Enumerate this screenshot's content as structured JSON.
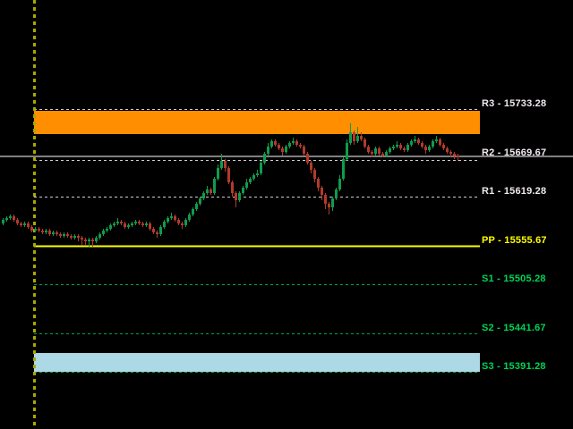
{
  "window": {
    "background": "#000000"
  },
  "chart_data": {
    "type": "candlestick",
    "title": "",
    "grid": false,
    "legend": false,
    "levels": [
      {
        "id": "R3",
        "label": "R3 - 15733.28",
        "value": 15733.28,
        "line_style": "dash",
        "line_color": "#d4cad4",
        "label_color": "#efe9ef"
      },
      {
        "id": "R2",
        "label": "R2 - 15669.67",
        "value": 15669.67,
        "line_style": "dash",
        "line_color": "#d4cad4",
        "label_color": "#efe9ef"
      },
      {
        "id": "R1",
        "label": "R1 - 15619.28",
        "value": 15619.28,
        "line_style": "dash",
        "line_color": "#d4cad4",
        "label_color": "#efe9ef"
      },
      {
        "id": "PP",
        "label": "PP - 15555.67",
        "value": 15555.67,
        "line_style": "solid",
        "line_color": "#ffff00",
        "label_color": "#ffff00"
      },
      {
        "id": "S1",
        "label": "S1 - 15505.28",
        "value": 15505.28,
        "line_style": "dash",
        "line_color": "#00a44c",
        "label_color": "#00d455"
      },
      {
        "id": "S2",
        "label": "S2 - 15441.67",
        "value": 15441.67,
        "line_style": "dash",
        "line_color": "#00a44c",
        "label_color": "#00d455"
      },
      {
        "id": "S3",
        "label": "S3 - 15391.28",
        "value": 15391.28,
        "line_style": "dash",
        "line_color": "#00a44c",
        "label_color": "#00d455"
      }
    ],
    "price_line": {
      "value": 15671.6,
      "color": "#808080"
    },
    "zones": [
      {
        "id": "resistance-zone",
        "color": "#ff8f00",
        "top_value": 15732.1,
        "bottom_value": 15700.7
      },
      {
        "id": "support-zone",
        "color": "#add8e6",
        "top_value": 15416.9,
        "bottom_value": 15391.28
      }
    ],
    "session_marker": {
      "style": "vertical-dash",
      "color": "#aaa800"
    },
    "bull_color": "#0f9c4c",
    "bear_color": "#b23a2c",
    "candles": [
      [
        15584.3,
        15591.3,
        15582.0,
        15589.0
      ],
      [
        15589.0,
        15593.7,
        15586.7,
        15591.3
      ],
      [
        15591.3,
        15596.0,
        15589.0,
        15593.7
      ],
      [
        15593.7,
        15596.0,
        15586.7,
        15589.0
      ],
      [
        15589.0,
        15591.3,
        15582.0,
        15584.3
      ],
      [
        15584.3,
        15586.7,
        15579.7,
        15582.0
      ],
      [
        15582.0,
        15586.7,
        15579.7,
        15584.3
      ],
      [
        15584.3,
        15586.7,
        15577.3,
        15579.7
      ],
      [
        15579.7,
        15582.0,
        15572.7,
        15575.0
      ],
      [
        15575.0,
        15579.7,
        15572.7,
        15577.3
      ],
      [
        15577.3,
        15579.7,
        15572.7,
        15575.0
      ],
      [
        15575.0,
        15577.3,
        15570.4,
        15572.7
      ],
      [
        15572.7,
        15577.3,
        15570.4,
        15575.0
      ],
      [
        15575.0,
        15577.3,
        15568.0,
        15570.4
      ],
      [
        15570.4,
        15575.0,
        15568.0,
        15572.7
      ],
      [
        15572.7,
        15575.0,
        15568.0,
        15570.4
      ],
      [
        15570.4,
        15572.7,
        15565.7,
        15568.0
      ],
      [
        15568.0,
        15572.7,
        15565.7,
        15570.4
      ],
      [
        15570.4,
        15572.7,
        15565.7,
        15568.0
      ],
      [
        15568.0,
        15570.4,
        15563.4,
        15565.7
      ],
      [
        15565.7,
        15570.4,
        15563.4,
        15568.0
      ],
      [
        15568.0,
        15570.4,
        15561.0,
        15565.7
      ],
      [
        15565.7,
        15568.0,
        15556.4,
        15563.4
      ],
      [
        15563.4,
        15565.7,
        15556.4,
        15561.0
      ],
      [
        15561.0,
        15565.7,
        15554.1,
        15563.4
      ],
      [
        15563.4,
        15565.7,
        15554.1,
        15561.0
      ],
      [
        15561.0,
        15568.0,
        15558.7,
        15565.7
      ],
      [
        15565.7,
        15572.7,
        15563.4,
        15570.4
      ],
      [
        15570.4,
        15577.3,
        15568.0,
        15575.0
      ],
      [
        15575.0,
        15579.7,
        15572.7,
        15577.3
      ],
      [
        15577.3,
        15584.3,
        15575.0,
        15582.0
      ],
      [
        15582.0,
        15586.7,
        15579.7,
        15584.3
      ],
      [
        15584.3,
        15591.3,
        15582.0,
        15586.7
      ],
      [
        15586.7,
        15589.0,
        15582.0,
        15584.3
      ],
      [
        15584.3,
        15586.7,
        15577.3,
        15579.7
      ],
      [
        15579.7,
        15584.3,
        15577.3,
        15582.0
      ],
      [
        15582.0,
        15586.7,
        15579.7,
        15584.3
      ],
      [
        15584.3,
        15589.0,
        15582.0,
        15586.7
      ],
      [
        15586.7,
        15589.0,
        15582.0,
        15584.3
      ],
      [
        15584.3,
        15586.7,
        15579.7,
        15582.0
      ],
      [
        15582.0,
        15586.7,
        15579.7,
        15584.3
      ],
      [
        15584.3,
        15586.7,
        15575.0,
        15577.3
      ],
      [
        15577.3,
        15579.7,
        15570.4,
        15572.7
      ],
      [
        15572.7,
        15575.0,
        15565.7,
        15570.4
      ],
      [
        15570.4,
        15582.0,
        15568.0,
        15579.7
      ],
      [
        15579.7,
        15589.0,
        15577.3,
        15586.7
      ],
      [
        15586.7,
        15593.7,
        15584.3,
        15591.3
      ],
      [
        15591.3,
        15598.3,
        15589.0,
        15593.7
      ],
      [
        15593.7,
        15596.0,
        15586.7,
        15589.0
      ],
      [
        15589.0,
        15591.3,
        15582.0,
        15584.3
      ],
      [
        15584.3,
        15586.7,
        15577.3,
        15582.0
      ],
      [
        15582.0,
        15591.3,
        15579.7,
        15589.0
      ],
      [
        15589.0,
        15598.3,
        15586.7,
        15596.0
      ],
      [
        15596.0,
        15605.3,
        15593.7,
        15603.0
      ],
      [
        15603.0,
        15612.3,
        15600.6,
        15610.0
      ],
      [
        15610.0,
        15619.3,
        15607.6,
        15617.0
      ],
      [
        15617.0,
        15626.2,
        15614.6,
        15623.9
      ],
      [
        15623.9,
        15633.2,
        15621.6,
        15628.6
      ],
      [
        15628.6,
        15630.9,
        15621.6,
        15623.9
      ],
      [
        15623.9,
        15644.9,
        15621.6,
        15642.5
      ],
      [
        15642.5,
        15661.2,
        15640.2,
        15656.5
      ],
      [
        15656.5,
        15675.1,
        15654.2,
        15665.8
      ],
      [
        15665.8,
        15668.1,
        15651.8,
        15656.5
      ],
      [
        15656.5,
        15658.8,
        15635.6,
        15637.9
      ],
      [
        15637.9,
        15640.2,
        15619.3,
        15623.9
      ],
      [
        15623.9,
        15626.2,
        15605.3,
        15614.6
      ],
      [
        15614.6,
        15626.2,
        15612.3,
        15623.9
      ],
      [
        15623.9,
        15633.2,
        15621.6,
        15630.9
      ],
      [
        15630.9,
        15642.5,
        15628.6,
        15637.9
      ],
      [
        15637.9,
        15644.9,
        15635.6,
        15642.5
      ],
      [
        15642.5,
        15649.5,
        15640.2,
        15647.2
      ],
      [
        15647.2,
        15654.2,
        15644.9,
        15649.5
      ],
      [
        15649.5,
        15665.8,
        15647.2,
        15663.5
      ],
      [
        15663.5,
        15677.4,
        15661.2,
        15675.1
      ],
      [
        15675.1,
        15689.1,
        15672.8,
        15684.4
      ],
      [
        15684.4,
        15693.7,
        15682.1,
        15691.4
      ],
      [
        15691.4,
        15693.7,
        15684.4,
        15686.7
      ],
      [
        15686.7,
        15689.1,
        15679.8,
        15682.1
      ],
      [
        15682.1,
        15684.4,
        15672.8,
        15677.4
      ],
      [
        15677.4,
        15686.7,
        15675.1,
        15684.4
      ],
      [
        15684.4,
        15691.4,
        15682.1,
        15689.1
      ],
      [
        15689.1,
        15696.1,
        15686.7,
        15691.4
      ],
      [
        15691.4,
        15693.7,
        15684.4,
        15686.7
      ],
      [
        15686.7,
        15689.1,
        15682.1,
        15684.4
      ],
      [
        15684.4,
        15686.7,
        15672.8,
        15675.1
      ],
      [
        15675.1,
        15677.4,
        15661.2,
        15663.5
      ],
      [
        15663.5,
        15665.8,
        15649.5,
        15654.2
      ],
      [
        15654.2,
        15656.5,
        15637.9,
        15642.5
      ],
      [
        15642.5,
        15644.9,
        15626.2,
        15630.9
      ],
      [
        15630.9,
        15633.2,
        15614.6,
        15621.6
      ],
      [
        15621.6,
        15623.9,
        15603.0,
        15610.0
      ],
      [
        15610.0,
        15612.3,
        15596.0,
        15605.3
      ],
      [
        15605.3,
        15619.3,
        15600.6,
        15617.0
      ],
      [
        15617.0,
        15630.9,
        15614.6,
        15628.6
      ],
      [
        15628.6,
        15647.2,
        15626.2,
        15642.5
      ],
      [
        15642.5,
        15670.5,
        15640.2,
        15668.1
      ],
      [
        15668.1,
        15693.7,
        15665.8,
        15689.1
      ],
      [
        15689.1,
        15714.7,
        15686.7,
        15703.0
      ],
      [
        15703.0,
        15705.4,
        15686.7,
        15691.4
      ],
      [
        15691.4,
        15710.0,
        15689.1,
        15698.4
      ],
      [
        15698.4,
        15703.0,
        15691.4,
        15693.7
      ],
      [
        15693.7,
        15696.1,
        15682.1,
        15684.4
      ],
      [
        15684.4,
        15686.7,
        15675.1,
        15677.4
      ],
      [
        15677.4,
        15679.8,
        15670.5,
        15675.1
      ],
      [
        15675.1,
        15684.4,
        15672.8,
        15682.1
      ],
      [
        15682.1,
        15684.4,
        15672.8,
        15675.1
      ],
      [
        15675.1,
        15677.4,
        15670.5,
        15672.8
      ],
      [
        15672.8,
        15679.8,
        15670.5,
        15677.4
      ],
      [
        15677.4,
        15684.4,
        15675.1,
        15682.1
      ],
      [
        15682.1,
        15686.7,
        15679.8,
        15684.4
      ],
      [
        15684.4,
        15691.4,
        15682.1,
        15686.7
      ],
      [
        15686.7,
        15689.1,
        15679.8,
        15682.1
      ],
      [
        15682.1,
        15684.4,
        15677.4,
        15679.8
      ],
      [
        15679.8,
        15689.1,
        15677.4,
        15686.7
      ],
      [
        15686.7,
        15693.7,
        15684.4,
        15691.4
      ],
      [
        15691.4,
        15698.4,
        15689.1,
        15693.7
      ],
      [
        15693.7,
        15696.1,
        15686.7,
        15689.1
      ],
      [
        15689.1,
        15691.4,
        15682.1,
        15684.4
      ],
      [
        15684.4,
        15686.7,
        15675.1,
        15679.8
      ],
      [
        15679.8,
        15686.7,
        15677.4,
        15684.4
      ],
      [
        15684.4,
        15693.7,
        15682.1,
        15691.4
      ],
      [
        15691.4,
        15698.4,
        15689.1,
        15693.7
      ],
      [
        15693.7,
        15696.1,
        15684.4,
        15686.7
      ],
      [
        15686.7,
        15689.1,
        15679.8,
        15682.1
      ],
      [
        15682.1,
        15684.4,
        15675.1,
        15677.4
      ],
      [
        15677.4,
        15679.8,
        15670.5,
        15675.1
      ],
      [
        15675.1,
        15677.4,
        15668.1,
        15672.8
      ],
      [
        15672.8,
        15675.1,
        15665.8,
        15670.5
      ]
    ]
  }
}
